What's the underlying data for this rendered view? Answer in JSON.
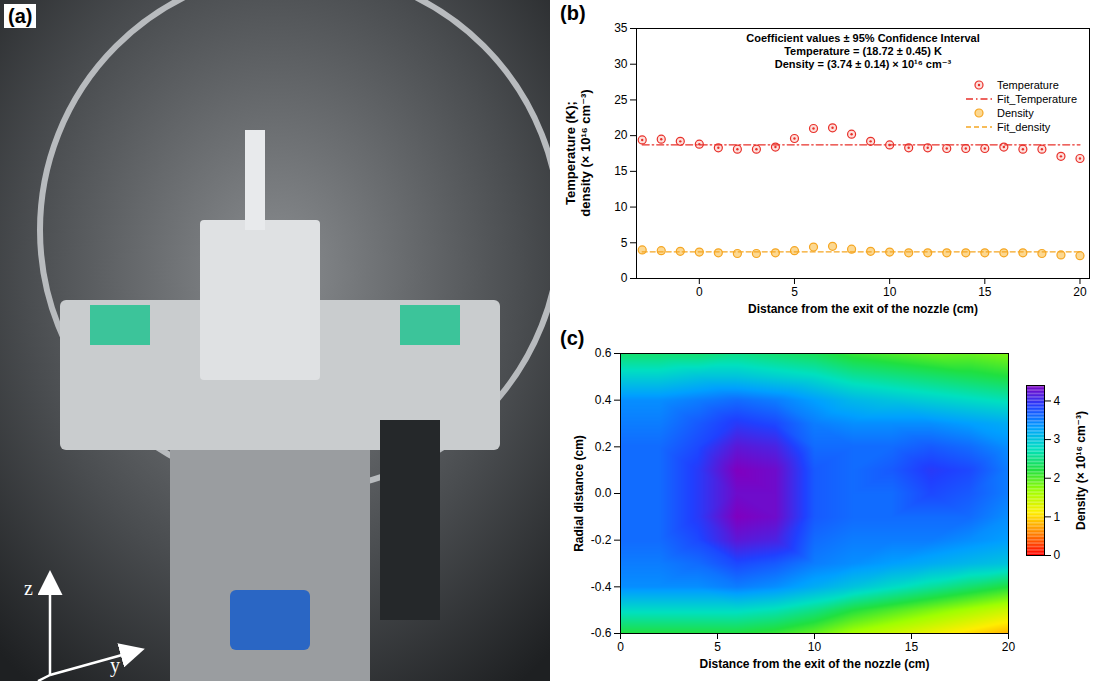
{
  "chart_data": [
    {
      "type": "image",
      "panel": "(a)",
      "annotations": [
        "z",
        "y"
      ]
    },
    {
      "type": "scatter",
      "panel": "(b)",
      "annotation": [
        "Coefficient values ± 95% Confidence Interval",
        "Temperature = (18.72 ± 0.45) K",
        "Density = (3.74 ± 0.14) × 10¹⁶ cm⁻³"
      ],
      "xlabel": "Distance from the exit of the nozzle (cm)",
      "ylabel": "Temperature (K); density (× 10¹⁶ cm⁻³)",
      "x": [
        -3,
        -2,
        -1,
        0,
        1,
        2,
        3,
        4,
        5,
        6,
        7,
        8,
        9,
        10,
        11,
        12,
        13,
        14,
        15,
        16,
        17,
        18,
        19,
        20
      ],
      "series": [
        {
          "name": "Temperature",
          "type": "scatter",
          "color": "#e8302a",
          "marker": "circle_dot",
          "values": [
            19.4,
            19.5,
            19.2,
            18.8,
            18.3,
            18.1,
            18.1,
            18.4,
            19.6,
            21.0,
            21.1,
            20.2,
            19.2,
            18.7,
            18.3,
            18.3,
            18.2,
            18.2,
            18.2,
            18.4,
            18.1,
            18.1,
            17.1,
            16.8
          ]
        },
        {
          "name": "Fit_Temperature",
          "type": "line",
          "color": "#e8302a",
          "line_style": "dashdot",
          "values": [
            18.72,
            18.72,
            18.72,
            18.72,
            18.72,
            18.72,
            18.72,
            18.72,
            18.72,
            18.72,
            18.72,
            18.72,
            18.72,
            18.72,
            18.72,
            18.72,
            18.72,
            18.72,
            18.72,
            18.72,
            18.72,
            18.72,
            18.72,
            18.72
          ]
        },
        {
          "name": "Density",
          "type": "scatter",
          "color": "#f5a623",
          "marker": "circle",
          "values": [
            4.0,
            3.9,
            3.8,
            3.7,
            3.6,
            3.5,
            3.5,
            3.6,
            3.9,
            4.4,
            4.5,
            4.1,
            3.8,
            3.7,
            3.6,
            3.6,
            3.6,
            3.6,
            3.6,
            3.6,
            3.6,
            3.5,
            3.3,
            3.2
          ]
        },
        {
          "name": "Fit_density",
          "type": "line",
          "color": "#f5a623",
          "line_style": "dashed",
          "values": [
            3.74,
            3.74,
            3.74,
            3.74,
            3.74,
            3.74,
            3.74,
            3.74,
            3.74,
            3.74,
            3.74,
            3.74,
            3.74,
            3.74,
            3.74,
            3.74,
            3.74,
            3.74,
            3.74,
            3.74,
            3.74,
            3.74,
            3.74,
            3.74
          ]
        }
      ],
      "xlim": [
        -3.3,
        20.5
      ],
      "xticks": [
        0,
        5,
        10,
        15,
        20
      ],
      "ylim": [
        0,
        35
      ],
      "yticks": [
        0,
        5,
        10,
        15,
        20,
        25,
        30,
        35
      ],
      "legend": "right",
      "grid": false
    },
    {
      "type": "heatmap",
      "panel": "(c)",
      "xlabel": "Distance from the exit of the nozzle (cm)",
      "ylabel": "Radial distance (cm)",
      "x": [
        0,
        2,
        4,
        6,
        8,
        10,
        12,
        14,
        16,
        18,
        20
      ],
      "y": [
        0.6,
        0.5,
        0.4,
        0.3,
        0.2,
        0.1,
        0.0,
        -0.1,
        -0.2,
        -0.3,
        -0.4,
        -0.5,
        -0.6
      ],
      "z": [
        [
          2.4,
          2.4,
          2.4,
          2.5,
          2.4,
          2.3,
          2.1,
          2.0,
          1.9,
          1.9,
          1.8
        ],
        [
          2.9,
          2.9,
          3.0,
          3.0,
          2.9,
          2.8,
          2.6,
          2.5,
          2.4,
          2.3,
          2.2
        ],
        [
          3.4,
          3.4,
          3.5,
          3.6,
          3.5,
          3.3,
          3.1,
          3.0,
          2.9,
          2.8,
          2.7
        ],
        [
          3.5,
          3.5,
          3.7,
          3.9,
          3.8,
          3.5,
          3.4,
          3.4,
          3.4,
          3.3,
          3.2
        ],
        [
          3.6,
          3.6,
          3.8,
          4.2,
          4.1,
          3.6,
          3.6,
          3.6,
          3.7,
          3.6,
          3.4
        ],
        [
          3.6,
          3.6,
          3.9,
          4.4,
          4.3,
          3.7,
          3.6,
          3.7,
          3.9,
          3.8,
          3.5
        ],
        [
          3.6,
          3.6,
          3.9,
          4.3,
          4.3,
          3.7,
          3.6,
          3.6,
          3.8,
          3.7,
          3.5
        ],
        [
          3.6,
          3.6,
          3.9,
          4.4,
          4.3,
          3.7,
          3.6,
          3.6,
          3.6,
          3.6,
          3.4
        ],
        [
          3.6,
          3.6,
          3.8,
          4.2,
          4.1,
          3.6,
          3.5,
          3.5,
          3.5,
          3.4,
          3.3
        ],
        [
          3.5,
          3.5,
          3.6,
          3.8,
          3.7,
          3.5,
          3.4,
          3.3,
          3.2,
          3.1,
          3.0
        ],
        [
          3.4,
          3.4,
          3.4,
          3.5,
          3.4,
          3.2,
          3.0,
          2.8,
          2.6,
          2.4,
          2.2
        ],
        [
          2.8,
          2.8,
          2.8,
          2.8,
          2.7,
          2.5,
          2.2,
          2.0,
          1.8,
          1.6,
          1.4
        ],
        [
          2.2,
          2.2,
          2.2,
          2.2,
          2.1,
          1.9,
          1.6,
          1.4,
          1.2,
          1.0,
          0.8
        ]
      ],
      "xlim": [
        0,
        20
      ],
      "xticks": [
        0,
        5,
        10,
        15,
        20
      ],
      "ylim": [
        -0.6,
        0.6
      ],
      "yticks": [
        -0.6,
        -0.4,
        -0.2,
        {
          "value": 0,
          "label": "0.0"
        },
        0.2,
        0.4,
        0.6
      ],
      "colorbar_label": "Density (× 10¹⁶ cm⁻³)",
      "clim": [
        0,
        4.4
      ],
      "cticks": [
        0,
        1,
        2,
        3,
        4
      ]
    }
  ]
}
